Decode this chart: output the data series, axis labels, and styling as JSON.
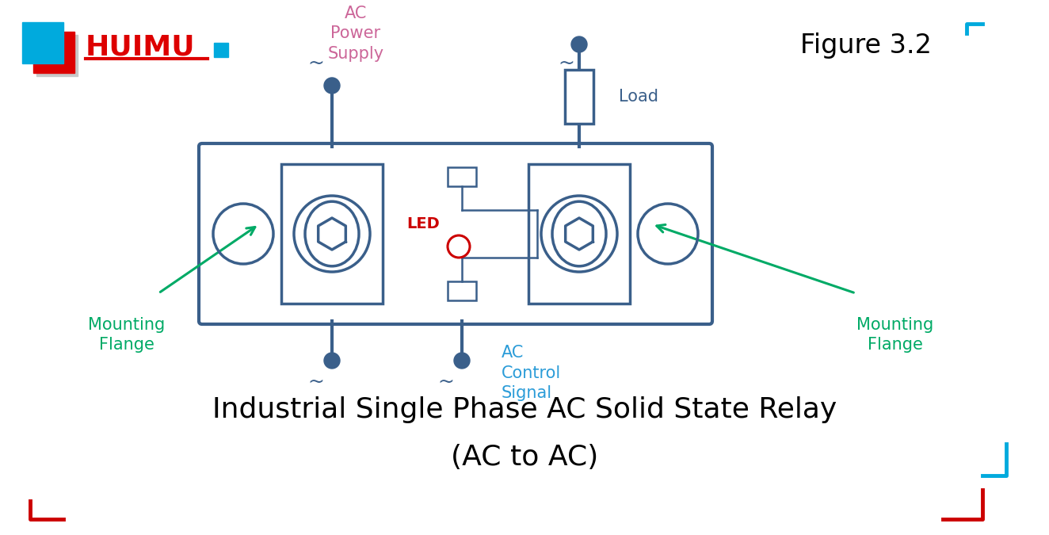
{
  "title_main": "Industrial Single Phase AC Solid State Relay",
  "title_sub": "(AC to AC)",
  "figure_label": "Figure 3.2",
  "colors": {
    "relay_body": "#3a5f8a",
    "relay_fill": "#ffffff",
    "wire": "#3a5f8a",
    "led_text": "#cc0000",
    "led_circle": "#cc0000",
    "ac_power_label": "#cc6699",
    "ac_control_label": "#2b9cd8",
    "load_label": "#3a5f8a",
    "mounting_label": "#00aa66",
    "arrow_mounting": "#00aa66",
    "figure_corner": "#00aadd",
    "huimu_text": "#dd0000",
    "huimu_box1": "#00aadd",
    "huimu_box2": "#dd0000",
    "tilde_color": "#3a5f8a",
    "background": "#ffffff"
  }
}
